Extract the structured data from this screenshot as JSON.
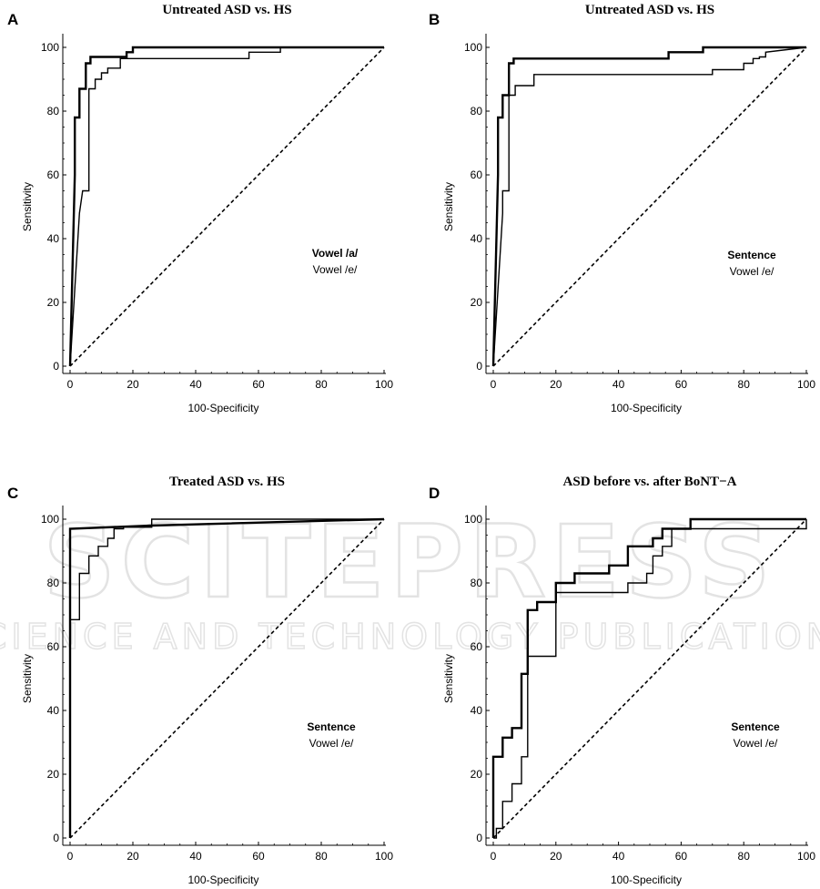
{
  "watermark": {
    "main": "SCITEPRESS",
    "sub": "SCIENCE AND TECHNOLOGY PUBLICATIONS"
  },
  "colors": {
    "curve": "#000000",
    "watermark": "#e3e3e3"
  },
  "chart_data": [
    {
      "panel": "A",
      "type": "line",
      "title": "Untreated ASD vs. HS",
      "xlabel": "100-Specificity",
      "ylabel": "Sensitivity",
      "xlim": [
        0,
        100
      ],
      "ylim": [
        0,
        100
      ],
      "xticks": [
        0,
        20,
        40,
        60,
        80,
        100
      ],
      "yticks": [
        0,
        20,
        40,
        60,
        80,
        100
      ],
      "legend": [
        "Vowel /a/",
        "Vowel /e/"
      ],
      "legend_position": "right-middle",
      "series": [
        {
          "name": "Vowel /a/",
          "bold": true,
          "x": [
            0,
            1.5,
            1.5,
            3,
            3,
            5,
            5,
            6.5,
            6.5,
            18,
            18,
            20,
            20,
            100
          ],
          "y": [
            0,
            60,
            78,
            78,
            87,
            87,
            95,
            95,
            97,
            97,
            98.5,
            98.5,
            100,
            100
          ]
        },
        {
          "name": "Vowel /e/",
          "bold": false,
          "x": [
            0,
            3,
            4,
            4,
            6,
            6,
            8,
            8,
            10,
            10,
            12,
            12,
            16,
            16,
            57,
            57,
            67,
            67,
            100
          ],
          "y": [
            0,
            48,
            55,
            55,
            55,
            87,
            87,
            90,
            90,
            92,
            92,
            93.5,
            93.5,
            96.5,
            96.5,
            98.5,
            98.5,
            100,
            100
          ]
        },
        {
          "name": "",
          "dashed": true,
          "x": [
            0,
            100
          ],
          "y": [
            0,
            100
          ]
        }
      ]
    },
    {
      "panel": "B",
      "type": "line",
      "title": "Untreated ASD vs. HS",
      "xlabel": "100-Specificity",
      "ylabel": "Sensitivity",
      "xlim": [
        0,
        100
      ],
      "ylim": [
        0,
        100
      ],
      "xticks": [
        0,
        20,
        40,
        60,
        80,
        100
      ],
      "yticks": [
        0,
        20,
        40,
        60,
        80,
        100
      ],
      "legend": [
        "Sentence",
        "Vowel /e/"
      ],
      "legend_position": "right-middle",
      "series": [
        {
          "name": "Sentence",
          "bold": true,
          "x": [
            0,
            1.5,
            1.5,
            3,
            3,
            5,
            5,
            6.5,
            6.5,
            56,
            56,
            67,
            67,
            100
          ],
          "y": [
            0,
            60,
            78,
            78,
            85,
            85,
            95,
            95,
            96.5,
            96.5,
            98.5,
            98.5,
            100,
            100
          ]
        },
        {
          "name": "Vowel /e/",
          "bold": false,
          "x": [
            0,
            3,
            3,
            5,
            5,
            7,
            7,
            13,
            13,
            70,
            70,
            80,
            80,
            83,
            83,
            85,
            85,
            87,
            87,
            100
          ],
          "y": [
            0,
            48,
            55,
            55,
            85,
            85,
            88,
            88,
            91.5,
            91.5,
            93,
            93,
            95,
            95,
            96.5,
            96.5,
            97,
            97,
            98.5,
            100
          ]
        },
        {
          "name": "",
          "dashed": true,
          "x": [
            0,
            100
          ],
          "y": [
            0,
            100
          ]
        }
      ]
    },
    {
      "panel": "C",
      "type": "line",
      "title": "Treated ASD vs. HS",
      "xlabel": "100-Specificity",
      "ylabel": "Sensitivity",
      "xlim": [
        0,
        100
      ],
      "ylim": [
        0,
        100
      ],
      "xticks": [
        0,
        20,
        40,
        60,
        80,
        100
      ],
      "yticks": [
        0,
        20,
        40,
        60,
        80,
        100
      ],
      "legend": [
        "Sentence",
        "Vowel /e/"
      ],
      "legend_position": "right-middle",
      "series": [
        {
          "name": "Sentence",
          "bold": true,
          "x": [
            0,
            0,
            26,
            100
          ],
          "y": [
            0,
            97,
            98,
            100
          ]
        },
        {
          "name": "Vowel /e/",
          "bold": false,
          "x": [
            0,
            0,
            3,
            3,
            6,
            6,
            9,
            9,
            12,
            12,
            14,
            14,
            17,
            17,
            26,
            26,
            100
          ],
          "y": [
            0,
            68.5,
            68.5,
            83,
            83,
            88.5,
            88.5,
            91.5,
            91.5,
            94,
            94,
            97,
            97,
            97.5,
            97.5,
            100,
            100
          ]
        },
        {
          "name": "",
          "dashed": true,
          "x": [
            0,
            100
          ],
          "y": [
            0,
            100
          ]
        }
      ]
    },
    {
      "panel": "D",
      "type": "line",
      "title": "ASD before vs. after BoNT−A",
      "xlabel": "100-Specificity",
      "ylabel": "Sensitivity",
      "xlim": [
        0,
        100
      ],
      "ylim": [
        0,
        100
      ],
      "xticks": [
        0,
        20,
        40,
        60,
        80,
        100
      ],
      "yticks": [
        0,
        20,
        40,
        60,
        80,
        100
      ],
      "legend": [
        "Sentence",
        "Vowel /e/"
      ],
      "legend_position": "right-middle",
      "series": [
        {
          "name": "Sentence",
          "bold": true,
          "x": [
            0,
            0,
            3,
            3,
            6,
            6,
            9,
            9,
            11,
            11,
            14,
            14,
            20,
            20,
            26,
            26,
            37,
            37,
            43,
            43,
            51,
            51,
            54,
            54,
            57,
            57,
            63,
            63,
            100
          ],
          "y": [
            0,
            25.5,
            25.5,
            31.5,
            31.5,
            34.5,
            34.5,
            51.5,
            51.5,
            71.5,
            71.5,
            74,
            74,
            80,
            80,
            83,
            83,
            85.5,
            85.5,
            91.5,
            91.5,
            94,
            94,
            97,
            97,
            97,
            97,
            100,
            100
          ]
        },
        {
          "name": "Vowel /e/",
          "bold": false,
          "x": [
            0,
            1,
            1,
            3,
            3,
            6,
            6,
            9,
            9,
            11,
            11,
            20,
            20,
            43,
            43,
            49,
            49,
            51,
            51,
            54,
            54,
            57,
            57,
            100,
            100
          ],
          "y": [
            0,
            0,
            3,
            3,
            11.5,
            11.5,
            17,
            17,
            25.5,
            25.5,
            57,
            57,
            77,
            77,
            80,
            80,
            83,
            83,
            88.5,
            88.5,
            91.5,
            91.5,
            97,
            97,
            100
          ]
        },
        {
          "name": "",
          "dashed": true,
          "x": [
            0,
            100
          ],
          "y": [
            0,
            100
          ]
        }
      ]
    }
  ]
}
